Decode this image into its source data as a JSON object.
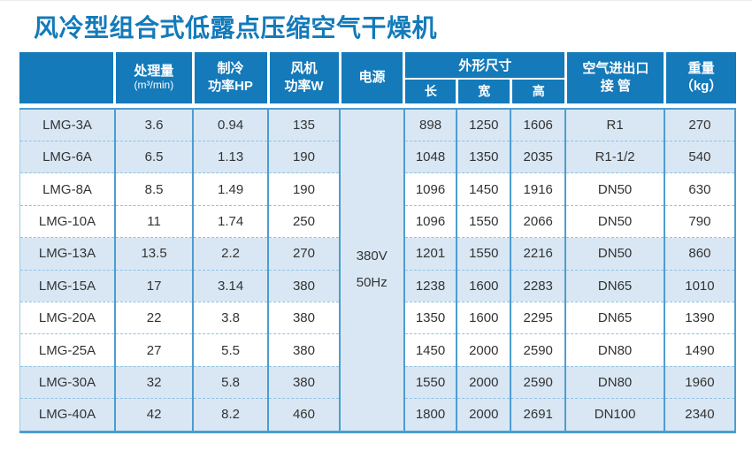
{
  "page": {
    "title": "风冷型组合式低露点压缩空气干燥机"
  },
  "colors": {
    "header_blue": "#147aba",
    "title_blue": "#147aba",
    "row_shade": "#d9e7f4",
    "grid_line": "#4d9dcf",
    "dash_line": "#8fc3e4"
  },
  "table": {
    "headers": {
      "model": "",
      "capacity": [
        "处理量",
        "(m³/min)"
      ],
      "cooling": [
        "制冷",
        "功率HP"
      ],
      "fan": [
        "风机",
        "功率W"
      ],
      "power": "电源",
      "dimensions": "外形尺寸",
      "dim_length": "长",
      "dim_width": "宽",
      "dim_height": "高",
      "pipe": [
        "空气进出口",
        "接 管"
      ],
      "weight": [
        "重量",
        "（kg）"
      ]
    },
    "power_value": [
      "380V",
      "50Hz"
    ],
    "rows": [
      {
        "model": "LMG-3A",
        "capacity": "3.6",
        "cooling": "0.94",
        "fan": "135",
        "length": "898",
        "width": "1250",
        "height": "1606",
        "pipe": "R1",
        "weight": "270",
        "shaded": true
      },
      {
        "model": "LMG-6A",
        "capacity": "6.5",
        "cooling": "1.13",
        "fan": "190",
        "length": "1048",
        "width": "1350",
        "height": "2035",
        "pipe": "R1-1/2",
        "weight": "540",
        "shaded": true
      },
      {
        "model": "LMG-8A",
        "capacity": "8.5",
        "cooling": "1.49",
        "fan": "190",
        "length": "1096",
        "width": "1450",
        "height": "1916",
        "pipe": "DN50",
        "weight": "630",
        "shaded": false
      },
      {
        "model": "LMG-10A",
        "capacity": "11",
        "cooling": "1.74",
        "fan": "250",
        "length": "1096",
        "width": "1550",
        "height": "2066",
        "pipe": "DN50",
        "weight": "790",
        "shaded": false
      },
      {
        "model": "LMG-13A",
        "capacity": "13.5",
        "cooling": "2.2",
        "fan": "270",
        "length": "1201",
        "width": "1550",
        "height": "2216",
        "pipe": "DN50",
        "weight": "860",
        "shaded": true
      },
      {
        "model": "LMG-15A",
        "capacity": "17",
        "cooling": "3.14",
        "fan": "380",
        "length": "1238",
        "width": "1600",
        "height": "2283",
        "pipe": "DN65",
        "weight": "1010",
        "shaded": true
      },
      {
        "model": "LMG-20A",
        "capacity": "22",
        "cooling": "3.8",
        "fan": "380",
        "length": "1350",
        "width": "1600",
        "height": "2295",
        "pipe": "DN65",
        "weight": "1390",
        "shaded": false
      },
      {
        "model": "LMG-25A",
        "capacity": "27",
        "cooling": "5.5",
        "fan": "380",
        "length": "1450",
        "width": "2000",
        "height": "2590",
        "pipe": "DN80",
        "weight": "1490",
        "shaded": false
      },
      {
        "model": "LMG-30A",
        "capacity": "32",
        "cooling": "5.8",
        "fan": "380",
        "length": "1550",
        "width": "2000",
        "height": "2590",
        "pipe": "DN80",
        "weight": "1960",
        "shaded": true
      },
      {
        "model": "LMG-40A",
        "capacity": "42",
        "cooling": "8.2",
        "fan": "460",
        "length": "1800",
        "width": "2000",
        "height": "2691",
        "pipe": "DN100",
        "weight": "2340",
        "shaded": true
      }
    ]
  }
}
